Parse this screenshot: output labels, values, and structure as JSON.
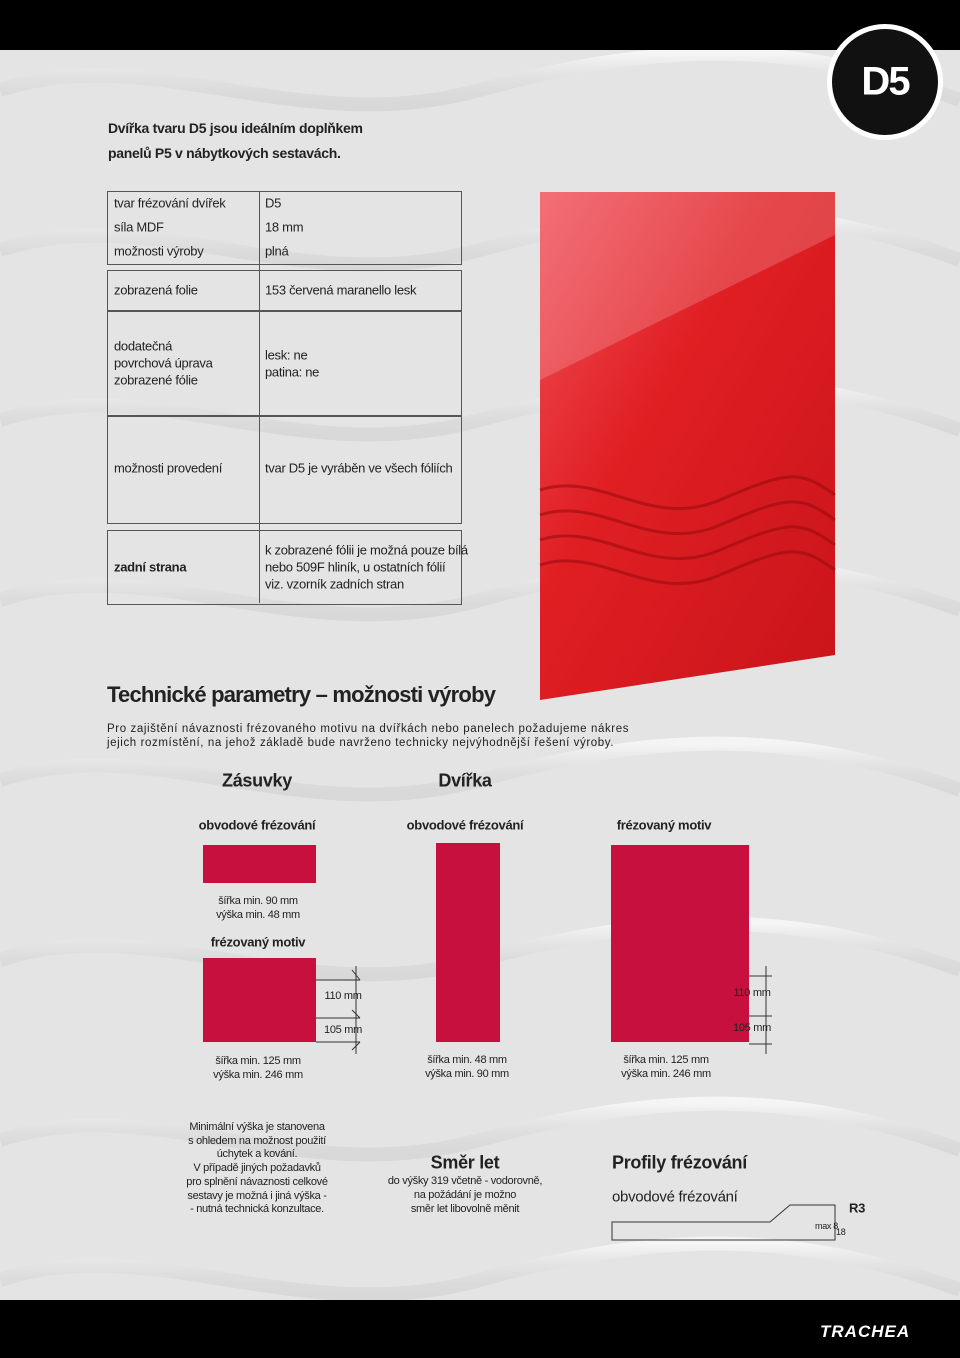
{
  "badge": "D5",
  "intro": [
    "Dvířka tvaru D5 jsou ideálním doplňkem",
    "panelů P5 v nábytkových sestavách."
  ],
  "table": {
    "rows": [
      {
        "label": [
          "tvar frézování dvířek"
        ],
        "value": [
          "D5"
        ]
      },
      {
        "label": [
          "síla MDF"
        ],
        "value": [
          "18 mm"
        ]
      },
      {
        "label": [
          "možnosti výroby"
        ],
        "value": [
          "plná"
        ]
      },
      {
        "label": [
          "zobrazená folie"
        ],
        "value": [
          "153 červená maranello lesk"
        ]
      },
      {
        "label": [
          "dodatečná",
          "povrchová úprava",
          "zobrazené fólie"
        ],
        "value": [
          "lesk: ne",
          "patina: ne"
        ]
      },
      {
        "label": [
          "možnosti provedení"
        ],
        "value": [
          "tvar D5 je vyráběn ve všech fóliích"
        ]
      },
      {
        "label": [
          "zadní strana"
        ],
        "value": [
          "k zobrazené fólii je možná pouze bílá",
          "nebo 509F hliník, u ostatních fólií",
          "viz. vzorník zadních stran"
        ]
      }
    ]
  },
  "technical": {
    "title": "Technické parametry – možnosti výroby",
    "text": [
      "Pro zajištění návaznosti frézovaného motivu na dvířkách nebo panelech požadujeme nákres",
      "jejich rozmístění, na jehož základě bude navrženo technicky nejvýhodnější řešení výroby."
    ],
    "drawers": {
      "heading": "Zásuvky",
      "edge": "obvodové frézování",
      "edge_dims": [
        "šířka min. 90 mm",
        "výška min. 48 mm"
      ],
      "motif": "frézovaný motiv",
      "motif_dims": [
        "šířka min. 125 mm",
        "výška min. 246 mm"
      ],
      "spacing": [
        "110 mm",
        "105 mm"
      ]
    },
    "doors": {
      "heading": "Dvířka",
      "edge": "obvodové frézování",
      "edge_dims": [
        "šířka min. 48 mm",
        "výška min. 90 mm"
      ],
      "motif": "frézovaný motiv",
      "motif_dims": [
        "šířka min. 125 mm",
        "výška min. 246 mm"
      ],
      "spacing": [
        "110 mm",
        "105 mm"
      ]
    }
  },
  "note": [
    "Minimální výška je stanovena",
    "s ohledem na možnost použití",
    "úchytek a kování.",
    "V případě jiných požadavků",
    "pro splnění návaznosti celkové",
    "sestavy je možná i jiná výška -",
    "- nutná technická konzultace."
  ],
  "direction": {
    "title": "Směr let",
    "text": [
      "do výšky 319 včetně - vodorovně,",
      "na požádání je možno",
      "směr let libovolně měnit"
    ]
  },
  "profiles": {
    "title": "Profily frézování",
    "subtitle": "obvodové frézování",
    "radius": "R3",
    "max": "max 8",
    "thickness": "18"
  },
  "logo": "TRACHEA"
}
